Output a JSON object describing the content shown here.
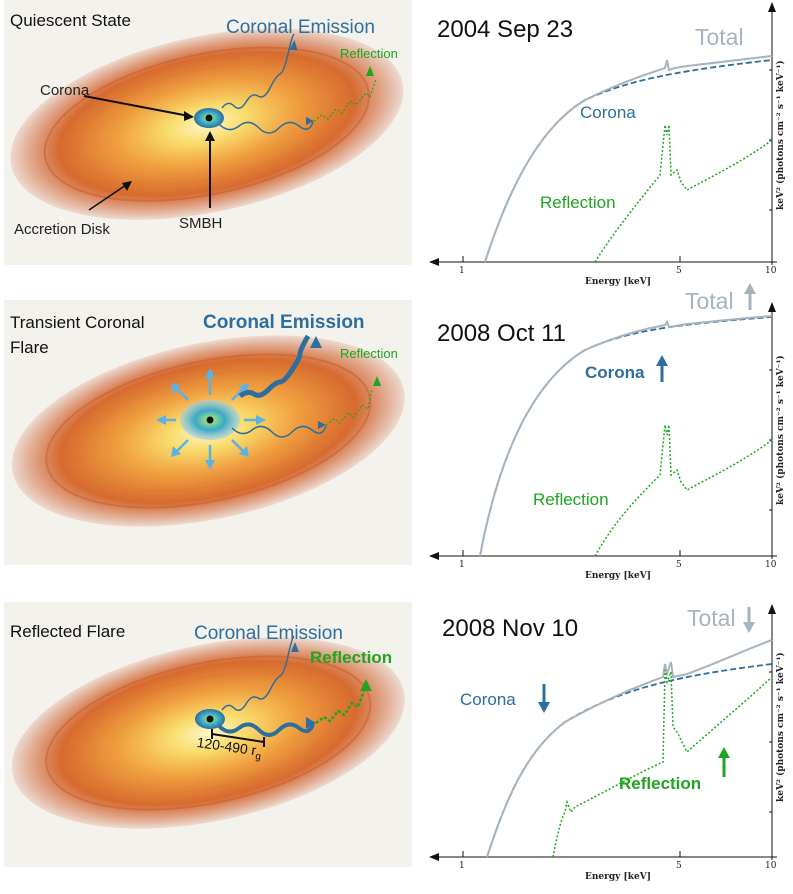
{
  "panels": [
    {
      "state_title": "Quiescent State",
      "emission_label": "Coronal Emission",
      "reflection_label": "Reflection",
      "corona_label": "Corona",
      "smbh_label": "SMBH",
      "disk_label": "Accretion Disk",
      "date": "2004 Sep 23",
      "total_label": "Total",
      "corona_plot_label": "Corona",
      "reflection_plot_label": "Reflection"
    },
    {
      "state_title_line1": "Transient Coronal",
      "state_title_line2": "Flare",
      "emission_label": "Coronal Emission",
      "reflection_label": "Reflection",
      "date": "2008 Oct 11",
      "total_label": "Total",
      "corona_plot_label": "Corona",
      "reflection_plot_label": "Reflection"
    },
    {
      "state_title": "Reflected Flare",
      "emission_label": "Coronal Emission",
      "reflection_label": "Reflection",
      "distance_label": "120-490 r",
      "distance_sub": "g",
      "date": "2008 Nov 10",
      "total_label": "Total",
      "corona_plot_label": "Corona",
      "reflection_plot_label": "Reflection"
    }
  ],
  "axes": {
    "x_ticks": [
      "1",
      "5",
      "10"
    ],
    "x_title": "Energy [keV]",
    "y_title": "keV² (photons cm⁻² s⁻¹ keV⁻¹)"
  },
  "colors": {
    "total": "#a7b3bd",
    "corona": "#2e6e9e",
    "reflection": "#1fa51f",
    "disk_outer": "#c8542a",
    "disk_inner": "#f7d46a",
    "corona_cloud": "#3aa8c7",
    "flare_arrow": "#5ab3e3"
  }
}
